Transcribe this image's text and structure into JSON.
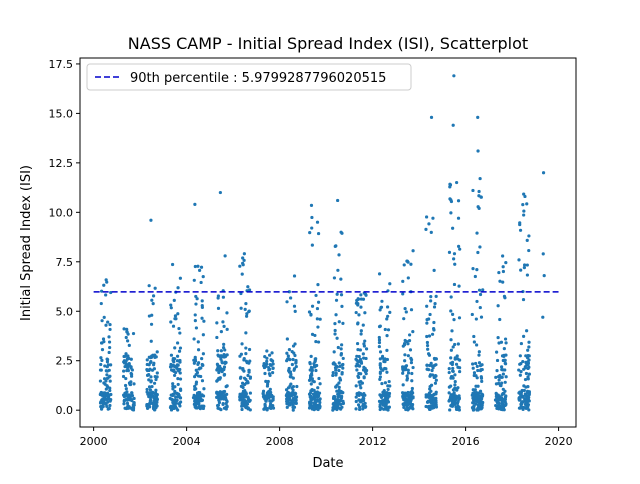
{
  "chart_data": {
    "type": "scatter",
    "title": "NASS CAMP - Initial Spread Index (ISI), Scatterplot",
    "xlabel": "Date",
    "ylabel": "Initial Spread Index (ISI)",
    "x_ticks": [
      "2000",
      "2004",
      "2008",
      "2012",
      "2016",
      "2020"
    ],
    "y_ticks": [
      "0.0",
      "2.5",
      "5.0",
      "7.5",
      "10.0",
      "12.5",
      "15.0",
      "17.5"
    ],
    "xlim": [
      "1999-06-01",
      "2020-10-01"
    ],
    "ylim": [
      -0.85,
      17.8
    ],
    "grid": false,
    "legend": {
      "position": "top-left"
    },
    "point_color": "#1f77b4",
    "percentile_line": {
      "label": "90th percentile : 5.9799287796020515",
      "value": 5.9799287796020515,
      "color": "#0000cc",
      "style": "dashed",
      "x_range": [
        "2000-01-01",
        "2019-12-31"
      ]
    },
    "seasons": [
      {
        "start": "2000-04-15",
        "end": "2000-09-30",
        "max": 6.6
      },
      {
        "start": "2001-04-15",
        "end": "2001-09-30",
        "max": 4.2
      },
      {
        "start": "2002-04-15",
        "end": "2002-09-30",
        "max": 6.4
      },
      {
        "start": "2003-04-15",
        "end": "2003-09-30",
        "max": 7.7
      },
      {
        "start": "2004-04-15",
        "end": "2004-09-30",
        "max": 7.4
      },
      {
        "start": "2005-04-15",
        "end": "2005-09-30",
        "max": 7.9
      },
      {
        "start": "2006-04-15",
        "end": "2006-09-30",
        "max": 8.0
      },
      {
        "start": "2007-04-15",
        "end": "2007-09-30",
        "max": 3.1
      },
      {
        "start": "2008-04-15",
        "end": "2008-09-30",
        "max": 6.9
      },
      {
        "start": "2009-04-15",
        "end": "2009-09-30",
        "max": 10.7
      },
      {
        "start": "2010-04-15",
        "end": "2010-09-30",
        "max": 9.2
      },
      {
        "start": "2011-04-15",
        "end": "2011-09-30",
        "max": 6.2
      },
      {
        "start": "2012-04-15",
        "end": "2012-09-30",
        "max": 7.3
      },
      {
        "start": "2013-04-15",
        "end": "2013-09-30",
        "max": 8.1
      },
      {
        "start": "2014-04-15",
        "end": "2014-09-30",
        "max": 10.0
      },
      {
        "start": "2015-04-15",
        "end": "2015-09-30",
        "max": 11.7
      },
      {
        "start": "2016-04-15",
        "end": "2016-09-30",
        "max": 11.8
      },
      {
        "start": "2017-04-15",
        "end": "2017-09-30",
        "max": 8.1
      },
      {
        "start": "2018-04-15",
        "end": "2018-09-30",
        "max": 11.0
      }
    ],
    "notable_points": [
      {
        "x": "2002-06-20",
        "y": 9.6
      },
      {
        "x": "2004-05-10",
        "y": 10.4
      },
      {
        "x": "2005-06-15",
        "y": 11.0
      },
      {
        "x": "2010-07-01",
        "y": 10.6
      },
      {
        "x": "2014-07-15",
        "y": 14.8
      },
      {
        "x": "2015-07-01",
        "y": 16.9
      },
      {
        "x": "2015-06-20",
        "y": 14.4
      },
      {
        "x": "2016-07-10",
        "y": 14.8
      },
      {
        "x": "2016-07-15",
        "y": 13.1
      },
      {
        "x": "2016-08-01",
        "y": 10.2
      },
      {
        "x": "2019-05-10",
        "y": 12.0
      },
      {
        "x": "2019-05-05",
        "y": 7.9
      },
      {
        "x": "2019-05-20",
        "y": 6.8
      },
      {
        "x": "2019-04-28",
        "y": 4.7
      }
    ]
  }
}
